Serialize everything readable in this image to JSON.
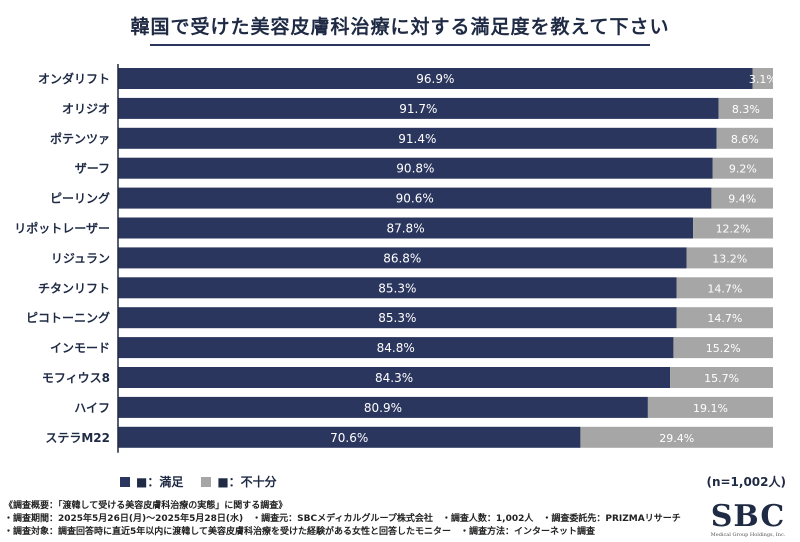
{
  "colors": {
    "satisfied": "#2b365e",
    "insufficient": "#a6a6a6",
    "axis": "#1f2a44"
  },
  "chart_data": {
    "type": "bar",
    "orientation": "horizontal",
    "stacked": true,
    "title": "韓国で受けた美容皮膚科治療に対する満足度を教えて下さい",
    "categories": [
      "オンダリフト",
      "オリジオ",
      "ポテンツァ",
      "ザーフ",
      "ピーリング",
      "リポットレーザー",
      "リジュラン",
      "チタンリフト",
      "ピコトーニング",
      "インモード",
      "モフィウス8",
      "ハイフ",
      "ステラM22"
    ],
    "series": [
      {
        "name": "満足",
        "values": [
          96.9,
          91.7,
          91.4,
          90.8,
          90.6,
          87.8,
          86.8,
          85.3,
          85.3,
          84.8,
          84.3,
          80.9,
          70.6
        ]
      },
      {
        "name": "不十分",
        "values": [
          3.1,
          8.3,
          8.6,
          9.2,
          9.4,
          12.2,
          13.2,
          14.7,
          14.7,
          15.2,
          15.7,
          19.1,
          29.4
        ]
      }
    ],
    "xlim": [
      0,
      100
    ],
    "unit": "%",
    "legend": "bottom-left"
  },
  "legend": {
    "satisfied": "■：満足",
    "insufficient": "■：不十分"
  },
  "sample": "(n=1,002人)",
  "footer": {
    "line1": "《調査概要：「渡韓して受ける美容皮膚科治療の実態」に関する調査》",
    "line2": "・調査期間：2025年5月26日(月)〜2025年5月28日(水)　・調査元：SBCメディカルグループ株式会社　・調査人数：1,002人　・調査委託先：PRIZMAリサーチ",
    "line3": "・調査対象：調査回答時に直近5年以内に渡韓して美容皮膚科治療を受けた経験がある女性と回答したモニター　・調査方法：インターネット調査"
  },
  "logo": {
    "text": "SBC",
    "sub": "Medical Group Holdings, Inc."
  }
}
